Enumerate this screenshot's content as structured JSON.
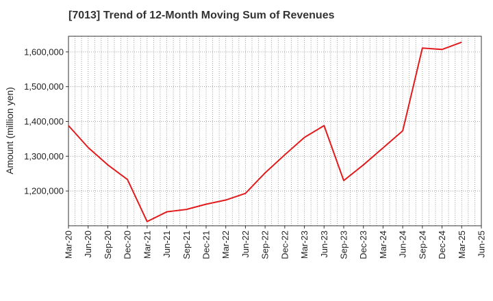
{
  "chart_data": {
    "type": "line",
    "title": "[7013]  Trend of 12-Month Moving Sum of Revenues",
    "xlabel": "",
    "ylabel": "Amount (million yen)",
    "ylim": [
      1100000,
      1645000
    ],
    "yticks": [
      1200000,
      1300000,
      1400000,
      1500000,
      1600000
    ],
    "ytick_labels": [
      "1,200,000",
      "1,300,000",
      "1,400,000",
      "1,500,000",
      "1,600,000"
    ],
    "xtick_labels": [
      "Mar-20",
      "Jun-20",
      "Sep-20",
      "Dec-20",
      "Mar-21",
      "Jun-21",
      "Sep-21",
      "Dec-21",
      "Mar-22",
      "Jun-22",
      "Sep-22",
      "Dec-22",
      "Mar-23",
      "Jun-23",
      "Sep-23",
      "Dec-23",
      "Mar-24",
      "Jun-24",
      "Sep-24",
      "Dec-24",
      "Mar-25",
      "Jun-25"
    ],
    "grid": true,
    "series": [
      {
        "color": "#e31a1c",
        "x": [
          "Mar-20",
          "Jun-20",
          "Sep-20",
          "Dec-20",
          "Mar-21",
          "Jun-21",
          "Sep-21",
          "Dec-21",
          "Mar-22",
          "Jun-22",
          "Sep-22",
          "Dec-22",
          "Mar-23",
          "Jun-23",
          "Sep-23",
          "Dec-23",
          "Mar-24",
          "Jun-24",
          "Sep-24",
          "Dec-24",
          "Mar-25"
        ],
        "values": [
          1388000,
          1325000,
          1275000,
          1233000,
          1112000,
          1140000,
          1147000,
          1162000,
          1174000,
          1193000,
          1252000,
          1304000,
          1354000,
          1388000,
          1230000,
          1275000,
          1324000,
          1373000,
          1611000,
          1607000,
          1628000
        ]
      }
    ]
  }
}
